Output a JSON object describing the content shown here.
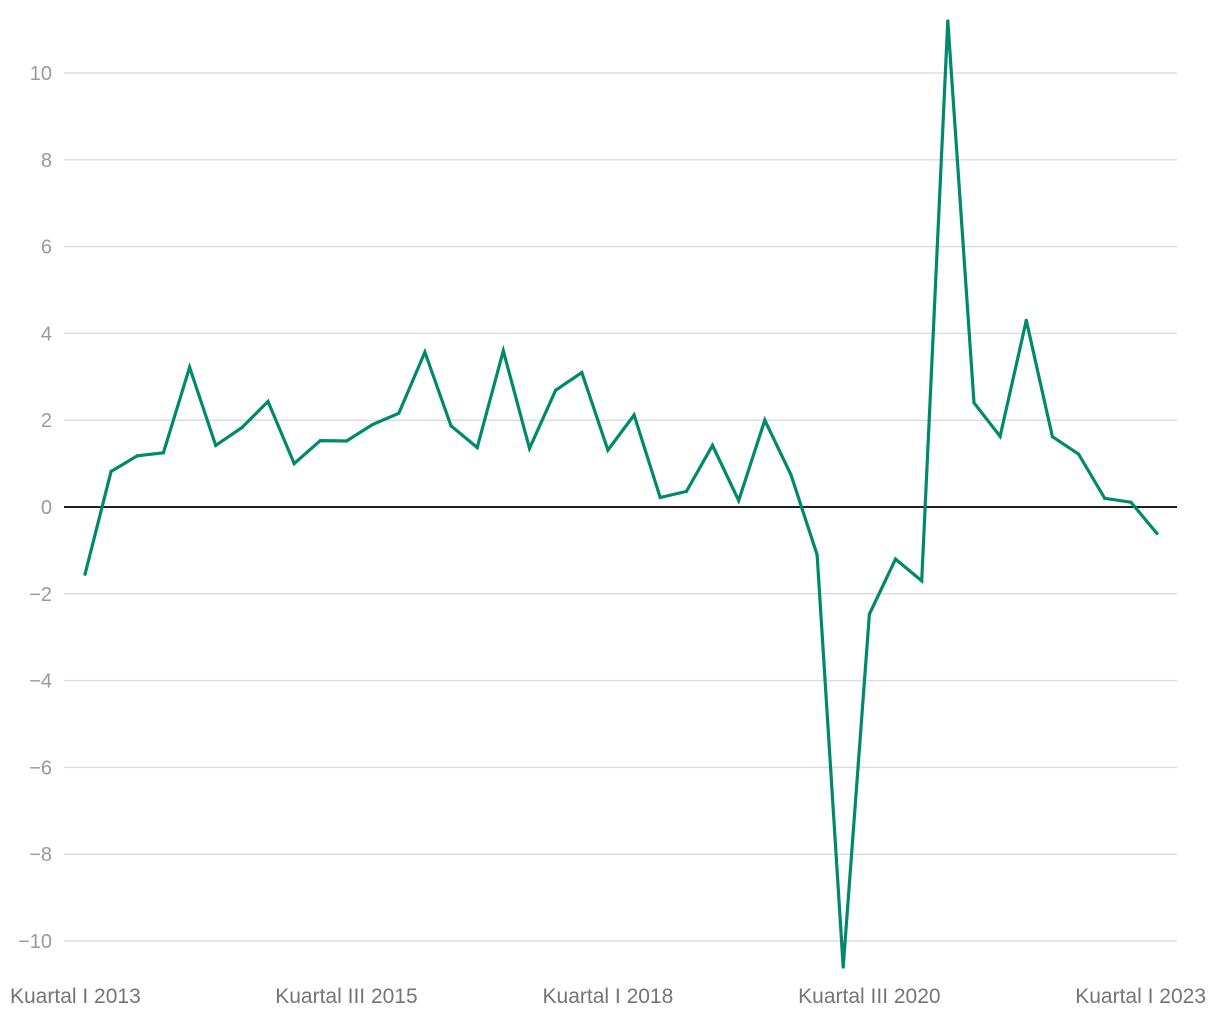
{
  "chart_data": {
    "type": "line",
    "title": "",
    "xlabel": "",
    "ylabel": "",
    "ylim": [
      -10.6,
      11.2
    ],
    "yticks": [
      10,
      8,
      6,
      4,
      2,
      0,
      -2,
      -4,
      -6,
      -8,
      -10
    ],
    "ytick_labels": [
      "10",
      "8",
      "6",
      "4",
      "2",
      "0",
      "−2",
      "−4",
      "−6",
      "−8",
      "−10"
    ],
    "grid": true,
    "legend": "none",
    "line_color": "#00896b",
    "x_tick_labels": [
      {
        "index": 0,
        "label": "Kuartal I 2013"
      },
      {
        "index": 10,
        "label": "Kuartal III 2015"
      },
      {
        "index": 20,
        "label": "Kuartal I 2018"
      },
      {
        "index": 30,
        "label": "Kuartal III 2020"
      },
      {
        "index": 40,
        "label": "Kuartal I 2023"
      }
    ],
    "series": [
      {
        "values": [
          -1.55,
          0.82,
          1.18,
          1.25,
          3.22,
          1.42,
          1.83,
          2.43,
          1.0,
          1.53,
          1.52,
          1.9,
          2.16,
          3.57,
          1.87,
          1.37,
          3.6,
          1.35,
          2.69,
          3.1,
          1.31,
          2.12,
          0.22,
          0.36,
          1.42,
          0.15,
          2.0,
          0.74,
          -1.1,
          -10.6,
          -2.47,
          -1.2,
          -1.7,
          11.2,
          2.4,
          1.63,
          4.3,
          1.62,
          1.22,
          0.2,
          0.11,
          -0.61
        ]
      }
    ]
  }
}
